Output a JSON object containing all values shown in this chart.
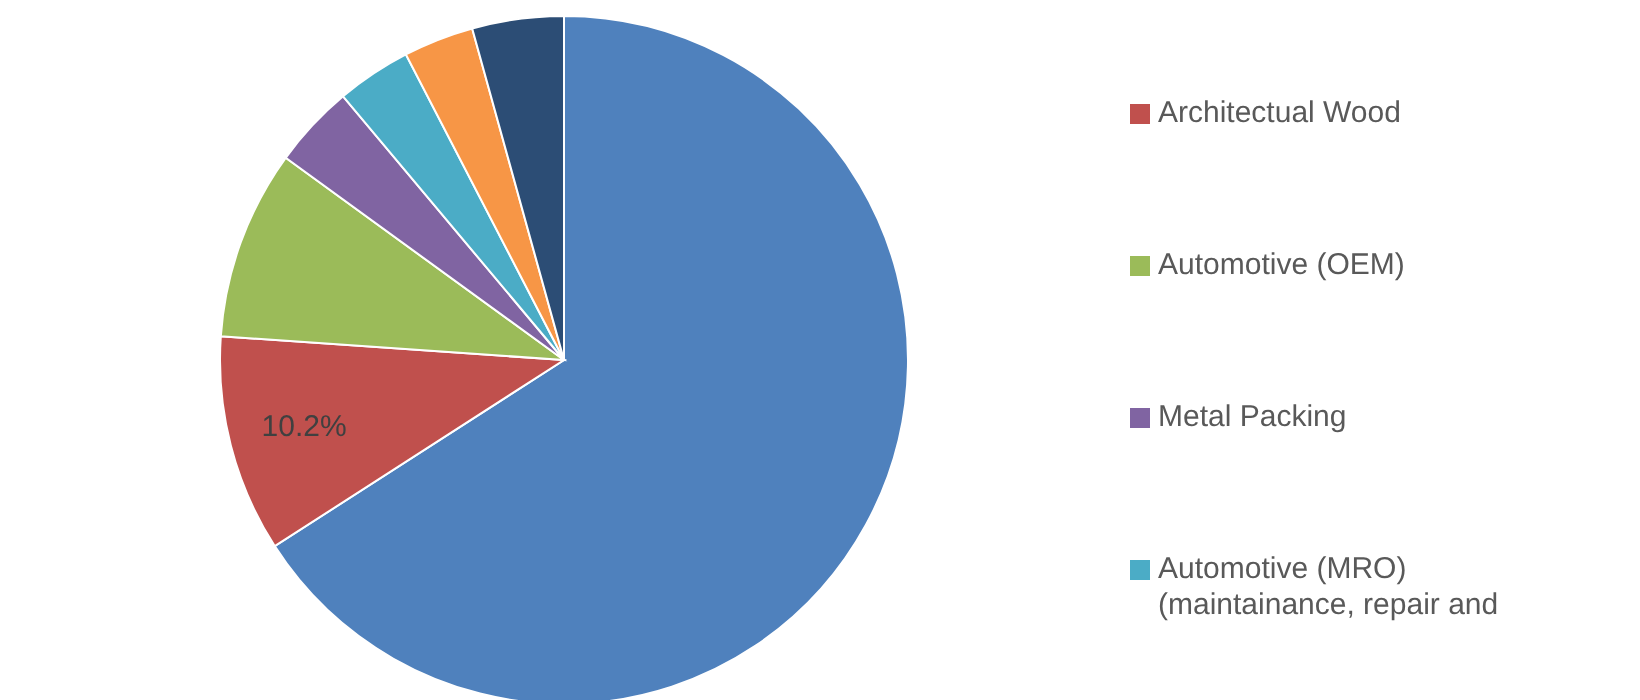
{
  "chart_data": {
    "type": "pie",
    "categories": [
      null,
      "Architectual Wood",
      "Automotive (OEM)",
      "Metal Packing",
      "Automotive (MRO) (maintainance, repair and",
      null,
      null
    ],
    "values": [
      65.9,
      10.2,
      8.9,
      3.9,
      3.5,
      3.3,
      4.3
    ],
    "colors": [
      "#4f81bd",
      "#c0504d",
      "#9bbb59",
      "#8064a2",
      "#4bacc6",
      "#f79646",
      "#2c4d75"
    ],
    "value_labels": [
      null,
      "10.2%",
      null,
      null,
      null,
      null,
      null
    ],
    "legend": "right"
  }
}
